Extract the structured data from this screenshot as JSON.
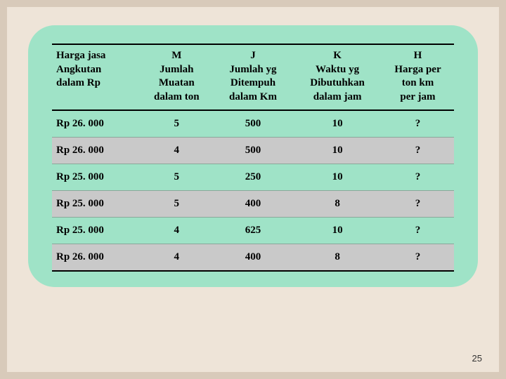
{
  "slide": {
    "page_number": "25",
    "background_color": "#eee4d8",
    "outer_background": "#d8caba",
    "card_background": "#9fe3c7",
    "row_alt_background": "#c9c9c9",
    "border_color": "#000000"
  },
  "table": {
    "columns": [
      {
        "code": "",
        "lines": [
          "Harga   jasa",
          "Angkutan",
          "dalam Rp"
        ],
        "align": "left",
        "width": "22%"
      },
      {
        "code": "M",
        "lines": [
          "M",
          "Jumlah",
          "Muatan",
          "dalam ton"
        ],
        "align": "center",
        "width": "18%"
      },
      {
        "code": "J",
        "lines": [
          "J",
          "Jumlah yg",
          "Ditempuh",
          "dalam Km"
        ],
        "align": "center",
        "width": "20%"
      },
      {
        "code": "K",
        "lines": [
          "K",
          "Waktu yg",
          "Dibutuhkan",
          "dalam jam"
        ],
        "align": "center",
        "width": "22%"
      },
      {
        "code": "H",
        "lines": [
          "H",
          "Harga per",
          "ton km",
          "per jam"
        ],
        "align": "center",
        "width": "18%"
      }
    ],
    "rows": [
      [
        "Rp 26. 000",
        "5",
        "500",
        "10",
        "?"
      ],
      [
        "Rp 26. 000",
        "4",
        "500",
        "10",
        "?"
      ],
      [
        "Rp 25. 000",
        "5",
        "250",
        "10",
        "?"
      ],
      [
        "Rp 25. 000",
        "5",
        "400",
        "8",
        "?"
      ],
      [
        "Rp 25. 000",
        "4",
        "625",
        "10",
        "?"
      ],
      [
        "Rp 26. 000",
        "4",
        "400",
        "8",
        "?"
      ]
    ]
  }
}
